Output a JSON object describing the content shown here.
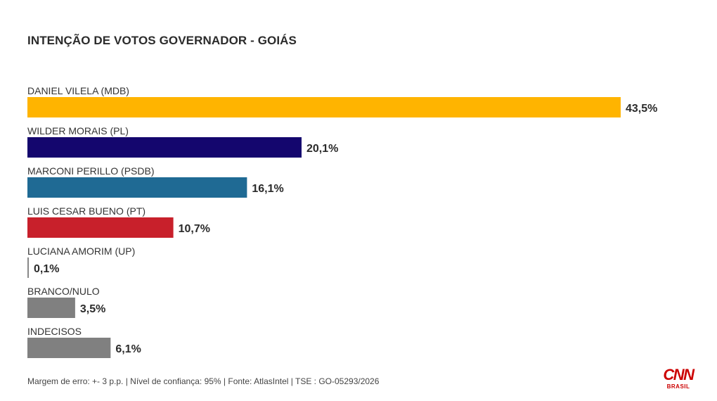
{
  "title": "INTENÇÃO DE VOTOS GOVERNADOR - GOIÁS",
  "footer": "Margem de erro: +- 3 p.p. | Nível de confiança: 95% | Fonte: AtlasIntel | TSE : GO-05293/2026",
  "logo": {
    "main": "CNN",
    "sub": "BRASIL"
  },
  "chart_data": {
    "type": "bar",
    "orientation": "horizontal",
    "title": "INTENÇÃO DE VOTOS GOVERNADOR - GOIÁS",
    "categories": [
      "DANIEL VILELA (MDB)",
      "WILDER MORAIS (PL)",
      "MARCONI PERILLO (PSDB)",
      "LUIS CESAR BUENO (PT)",
      "LUCIANA AMORIM (UP)",
      "BRANCO/NULO",
      "INDECISOS"
    ],
    "values": [
      43.5,
      20.1,
      16.1,
      10.7,
      0.1,
      3.5,
      6.1
    ],
    "value_labels": [
      "43,5%",
      "20,1%",
      "16,1%",
      "10,7%",
      "0,1%",
      "3,5%",
      "6,1%"
    ],
    "colors": [
      "#FFB400",
      "#14066E",
      "#1F6A94",
      "#C8202B",
      "#888888",
      "#808080",
      "#808080"
    ],
    "xlim": [
      0,
      43.5
    ],
    "grid": false,
    "legend": "none"
  }
}
